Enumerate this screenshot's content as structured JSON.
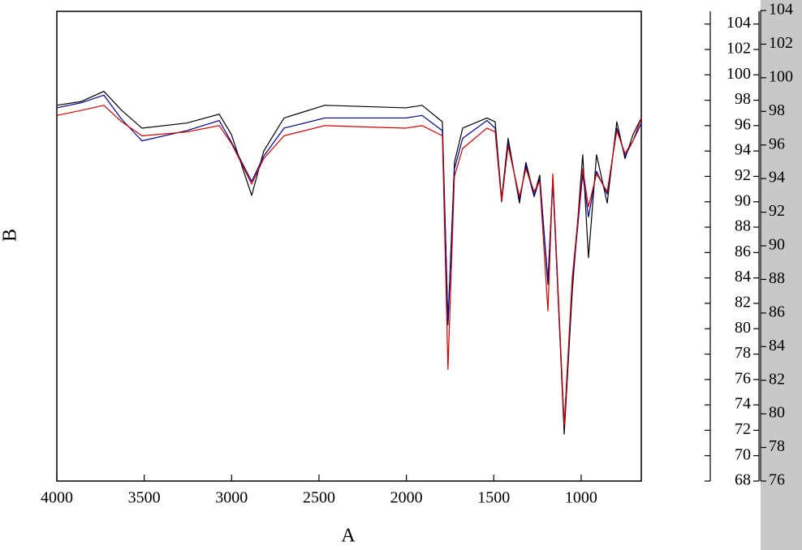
{
  "chart_data": {
    "type": "line",
    "x_label": "A",
    "y_label": "B",
    "xlim": [
      4000,
      656
    ],
    "xticks": [
      4000,
      3500,
      3000,
      2500,
      2000,
      1500,
      1000
    ],
    "ylim": [
      68,
      105
    ],
    "yticks": [
      68,
      70,
      72,
      74,
      76,
      78,
      80,
      82,
      84,
      86,
      88,
      90,
      92,
      94,
      96,
      98,
      100,
      102,
      104
    ],
    "y2lim": [
      76,
      104
    ],
    "y2ticks": [
      76,
      78,
      80,
      82,
      84,
      86,
      88,
      90,
      92,
      94,
      96,
      98,
      100,
      102,
      104
    ],
    "x": [
      4000,
      3860,
      3731,
      3629,
      3513,
      3257,
      3071,
      3001,
      2885,
      2816,
      2700,
      2467,
      2003,
      1910,
      1794,
      1762,
      1725,
      1678,
      1539,
      1492,
      1455,
      1418,
      1353,
      1316,
      1269,
      1237,
      1190,
      1162,
      1097,
      1051,
      991,
      958,
      912,
      851,
      796,
      749,
      703,
      656
    ],
    "series": [
      {
        "name": "black",
        "color": "#000000",
        "values": [
          97.6,
          97.9,
          98.7,
          97.2,
          95.8,
          96.2,
          96.9,
          95.3,
          90.5,
          94.0,
          96.6,
          97.6,
          97.4,
          97.6,
          96.3,
          80.3,
          93.1,
          95.8,
          96.6,
          96.3,
          90.2,
          95.0,
          89.9,
          93.1,
          90.5,
          92.1,
          83.5,
          91.9,
          71.7,
          82.9,
          93.7,
          85.6,
          93.7,
          89.9,
          96.3,
          93.4,
          95.3,
          96.6
        ]
      },
      {
        "name": "blue",
        "color": "#00008b",
        "values": [
          97.4,
          97.8,
          98.4,
          96.5,
          94.8,
          95.6,
          96.4,
          94.7,
          91.6,
          93.6,
          95.8,
          96.6,
          96.6,
          96.8,
          95.6,
          80.5,
          92.6,
          95.0,
          96.4,
          95.8,
          90.0,
          94.6,
          90.2,
          92.8,
          90.4,
          91.8,
          83.8,
          91.6,
          72.3,
          83.5,
          92.2,
          88.8,
          92.4,
          90.6,
          95.8,
          93.6,
          94.8,
          96.2
        ]
      },
      {
        "name": "red",
        "color": "#cc0000",
        "values": [
          96.8,
          97.2,
          97.6,
          96.3,
          95.2,
          95.5,
          96.0,
          94.6,
          91.4,
          93.4,
          95.2,
          96.0,
          95.8,
          96.0,
          95.2,
          76.8,
          92.0,
          94.2,
          95.8,
          95.5,
          90.0,
          94.4,
          90.4,
          92.6,
          90.8,
          91.6,
          81.4,
          92.2,
          72.4,
          84.0,
          92.6,
          89.6,
          92.2,
          90.8,
          95.6,
          93.8,
          94.8,
          96.6
        ]
      }
    ]
  }
}
